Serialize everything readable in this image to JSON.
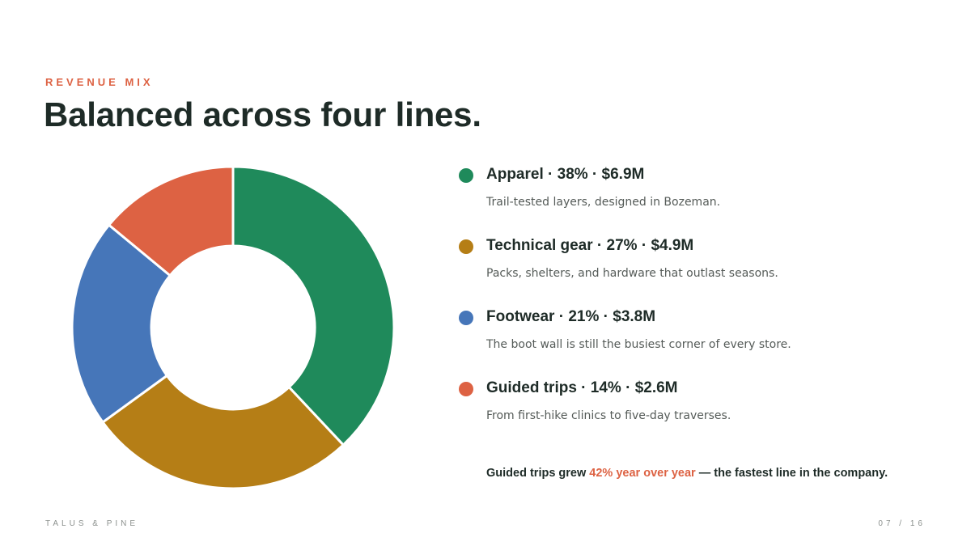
{
  "header": {
    "eyebrow": "REVENUE MIX",
    "title": "Balanced across four lines."
  },
  "chart_data": {
    "type": "pie",
    "title": "",
    "categories": [
      "Apparel",
      "Technical gear",
      "Footwear",
      "Guided trips"
    ],
    "values": [
      38,
      27,
      21,
      14
    ],
    "colors": [
      "#1f8a5b",
      "#b57e16",
      "#4676b9",
      "#dd6243"
    ],
    "legend_position": "right"
  },
  "legend": {
    "items": [
      {
        "label": "Apparel · 38% · $6.9M",
        "desc": "Trail-tested layers, designed in Bozeman.",
        "color": "#1f8a5b"
      },
      {
        "label": "Technical gear · 27% · $4.9M",
        "desc": "Packs, shelters, and hardware that outlast seasons.",
        "color": "#b57e16"
      },
      {
        "label": "Footwear · 21% · $3.8M",
        "desc": "The boot wall is still the busiest corner of every store.",
        "color": "#4676b9"
      },
      {
        "label": "Guided trips · 14% · $2.6M",
        "desc": "From first-hike clinics to five-day traverses.",
        "color": "#dd6243"
      }
    ]
  },
  "callout": {
    "prefix": "Guided trips grew ",
    "highlight": "42% year over year",
    "suffix": " — the fastest line in the company."
  },
  "footer": {
    "brand": "TALUS & PINE",
    "page": "07 / 16"
  }
}
